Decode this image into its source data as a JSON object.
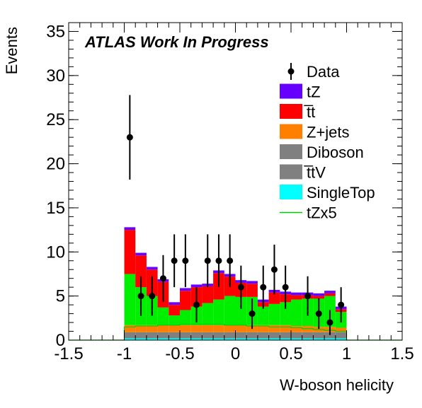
{
  "chart_data": {
    "type": "bar",
    "subtype": "stacked-histogram",
    "title": "ATLAS Work In Progress",
    "xlabel": "W-boson helicity",
    "ylabel": "Events",
    "xlim": [
      -1.5,
      1.5
    ],
    "ylim": [
      0,
      36
    ],
    "x_ticks": [
      "-1.5",
      "-1",
      "-0.5",
      "0",
      "0.5",
      "1",
      "1.5"
    ],
    "y_ticks": [
      "0",
      "5",
      "10",
      "15",
      "20",
      "25",
      "30",
      "35"
    ],
    "bins": {
      "low_edges": [
        -1.0,
        -0.9,
        -0.8,
        -0.7,
        -0.6,
        -0.5,
        -0.4,
        -0.3,
        -0.2,
        -0.1,
        0.0,
        0.1,
        0.2,
        0.3,
        0.4,
        0.5,
        0.6,
        0.7,
        0.8,
        0.9
      ],
      "width": 0.1
    },
    "series": [
      {
        "name": "SingleTop",
        "color": "#00ffff",
        "values": [
          0.2,
          0.2,
          0.2,
          0.2,
          0.2,
          0.2,
          0.2,
          0.2,
          0.2,
          0.2,
          0.2,
          0.2,
          0.2,
          0.2,
          0.2,
          0.2,
          0.2,
          0.2,
          0.2,
          0.2
        ]
      },
      {
        "name": "t̅tV",
        "color": "#808080",
        "values": [
          0.4,
          0.4,
          0.4,
          0.4,
          0.4,
          0.4,
          0.4,
          0.4,
          0.4,
          0.4,
          0.4,
          0.4,
          0.4,
          0.4,
          0.4,
          0.4,
          0.4,
          0.4,
          0.4,
          0.4
        ]
      },
      {
        "name": "Diboson",
        "color": "#7f7f7f",
        "values": [
          0.3,
          0.3,
          0.3,
          0.3,
          0.3,
          0.3,
          0.3,
          0.3,
          0.3,
          0.3,
          0.3,
          0.3,
          0.3,
          0.3,
          0.3,
          0.3,
          0.3,
          0.3,
          0.3,
          0.3
        ]
      },
      {
        "name": "Z+jets",
        "color": "#ff8000",
        "values": [
          0.8,
          0.8,
          0.8,
          0.8,
          0.8,
          0.8,
          0.8,
          0.8,
          0.8,
          0.8,
          0.8,
          0.8,
          0.8,
          0.8,
          0.8,
          0.7,
          0.7,
          0.6,
          0.6,
          0.5
        ]
      },
      {
        "name": "tZx5",
        "color": "#00ee00",
        "values": [
          5.8,
          4.3,
          3.3,
          2.0,
          1.1,
          1.7,
          2.1,
          2.5,
          2.9,
          3.3,
          3.2,
          3.2,
          2.1,
          2.4,
          2.6,
          3.0,
          3.1,
          3.2,
          3.5,
          1.8
        ]
      },
      {
        "name": "t̅t",
        "color": "#ff0000",
        "values": [
          5.0,
          3.6,
          3.0,
          2.9,
          1.2,
          2.2,
          2.2,
          1.9,
          3.0,
          2.2,
          1.6,
          1.5,
          0.5,
          1.3,
          0.9,
          0.5,
          0.4,
          0.3,
          0.3,
          0.3
        ]
      },
      {
        "name": "tZ",
        "color": "#6600ff",
        "values": [
          0.3,
          0.3,
          0.3,
          0.3,
          0.3,
          0.3,
          0.3,
          0.3,
          0.3,
          0.3,
          0.3,
          0.3,
          0.3,
          0.3,
          0.3,
          0.3,
          0.3,
          0.3,
          0.3,
          0.3
        ]
      }
    ],
    "tZx5_line": {
      "name": "tZx5",
      "color": "#00cc00",
      "values": [
        1.5,
        1.6,
        1.6,
        1.7,
        1.7,
        1.8,
        1.8,
        1.8,
        1.8,
        1.7,
        1.7,
        1.6,
        1.6,
        1.5,
        1.5,
        1.4,
        1.3,
        1.2,
        1.1,
        1.0
      ]
    },
    "data_points": {
      "name": "Data",
      "x": [
        -0.95,
        -0.85,
        -0.75,
        -0.65,
        -0.55,
        -0.45,
        -0.35,
        -0.25,
        -0.15,
        -0.05,
        0.05,
        0.15,
        0.25,
        0.35,
        0.45,
        0.65,
        0.75,
        0.85,
        0.95
      ],
      "y": [
        23,
        5,
        5,
        7,
        9,
        9,
        4,
        9,
        9,
        9,
        6,
        3,
        6,
        8,
        6,
        5,
        3,
        2,
        4
      ]
    },
    "legend": {
      "placement": "top-right",
      "entries": [
        {
          "label": "Data",
          "kind": "marker",
          "color": "#000000"
        },
        {
          "label": "tZ",
          "kind": "box",
          "color": "#6600ff"
        },
        {
          "label": "t̅t",
          "kind": "box",
          "color": "#ff0000"
        },
        {
          "label": "Z+jets",
          "kind": "box",
          "color": "#ff8000"
        },
        {
          "label": "Diboson",
          "kind": "box",
          "color": "#808080"
        },
        {
          "label": "t̅tV",
          "kind": "box",
          "color": "#808080"
        },
        {
          "label": "SingleTop",
          "kind": "box",
          "color": "#00ffff"
        },
        {
          "label": "tZx5",
          "kind": "line",
          "color": "#00cc00"
        }
      ]
    },
    "grid": false
  }
}
